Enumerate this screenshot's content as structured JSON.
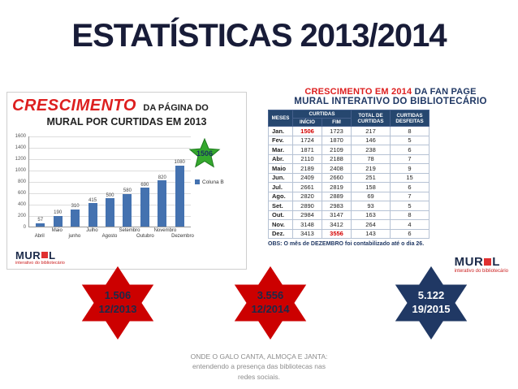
{
  "slide": {
    "title": "ESTATÍSTICAS 2013/2014"
  },
  "left_chart": {
    "title_word": "CRESCIMENTO",
    "title_rest": "DA PÁGINA DO",
    "title_line2": "MURAL POR CURTIDAS EM 2013",
    "star_value": "1506",
    "legend_label": "Coluna B"
  },
  "right_table": {
    "title_red": "CRESCIMENTO EM 2014",
    "title_dark": " DA FAN PAGE",
    "title_line2": "MURAL INTERATIVO DO BIBLIOTECÁRIO",
    "headers": {
      "meses": "MESES",
      "curtidas": "CURTIDAS",
      "inicio": "INÍCIO",
      "fim": "FIM",
      "total": "TOTAL DE CURTIDAS",
      "desfeitas": "CURTIDAS DESFEITAS"
    },
    "obs": "OBS: O mês de DEZEMBRO foi contabilizado até o dia 26."
  },
  "logo": {
    "prefix": "MUR",
    "suffix": "L",
    "subtext": "interativo do bibliotecário"
  },
  "chart_data": [
    {
      "type": "bar",
      "title": "CRESCIMENTO DA PÁGINA DO MURAL POR CURTIDAS EM 2013",
      "categories": [
        "Abril",
        "Maio",
        "junho",
        "Julho",
        "Agosto",
        "Setembro",
        "Outubro",
        "Novembro",
        "Dezembro"
      ],
      "values": [
        57,
        190,
        310,
        415,
        500,
        580,
        690,
        820,
        1080
      ],
      "annotation": {
        "text": "1506",
        "shape": "green-star",
        "position": "top-right"
      },
      "legend": [
        "Coluna B"
      ],
      "legend_position": "right",
      "xlabel": "",
      "ylabel": "",
      "ylim": [
        0,
        1600
      ],
      "yticks": [
        0,
        200,
        400,
        600,
        800,
        1000,
        1200,
        1400,
        1600
      ],
      "grid": true,
      "bar_color": "#4472b0"
    },
    {
      "type": "table",
      "title": "CRESCIMENTO EM 2014 DA FAN PAGE MURAL INTERATIVO DO BIBLIOTECÁRIO",
      "columns": [
        "MESES",
        "CURTIDAS INÍCIO",
        "CURTIDAS FIM",
        "TOTAL DE CURTIDAS",
        "CURTIDAS DESFEITAS"
      ],
      "rows": [
        [
          "Jan.",
          "1506",
          "1723",
          "217",
          "8"
        ],
        [
          "Fev.",
          "1724",
          "1870",
          "146",
          "5"
        ],
        [
          "Mar.",
          "1871",
          "2109",
          "238",
          "6"
        ],
        [
          "Abr.",
          "2110",
          "2188",
          "78",
          "7"
        ],
        [
          "Maio",
          "2189",
          "2408",
          "219",
          "9"
        ],
        [
          "Jun.",
          "2409",
          "2660",
          "251",
          "15"
        ],
        [
          "Jul.",
          "2661",
          "2819",
          "158",
          "6"
        ],
        [
          "Ago.",
          "2820",
          "2889",
          "69",
          "7"
        ],
        [
          "Set.",
          "2890",
          "2983",
          "93",
          "5"
        ],
        [
          "Out.",
          "2984",
          "3147",
          "163",
          "8"
        ],
        [
          "Nov.",
          "3148",
          "3412",
          "264",
          "4"
        ],
        [
          "Dez.",
          "3413",
          "3556",
          "143",
          "6"
        ]
      ],
      "highlight_cells": [
        [
          0,
          1
        ],
        [
          11,
          2
        ]
      ],
      "highlight_color": "#d40000",
      "note": "OBS: O mês de DEZEMBRO foi contabilizado até o dia 26."
    }
  ],
  "stars": [
    {
      "value": "1.506",
      "date": "12/2013",
      "fill": "#cc0000",
      "text_color": "#1b2a4a"
    },
    {
      "value": "3.556",
      "date": "12/2014",
      "fill": "#cc0000",
      "text_color": "#1b2a4a"
    },
    {
      "value": "5.122",
      "date": "19/2015",
      "fill": "#203864",
      "text_color": "#ffffff"
    }
  ],
  "footer": {
    "line1": "ONDE O GALO CANTA, ALMOÇA E JANTA:",
    "line2": "entendendo a presença das bibliotecas nas",
    "line3": "redes sociais."
  },
  "colors": {
    "accent_red": "#dd1f1f",
    "navy": "#203864",
    "bar_blue": "#4472b0",
    "star_green": "#35a82e"
  }
}
